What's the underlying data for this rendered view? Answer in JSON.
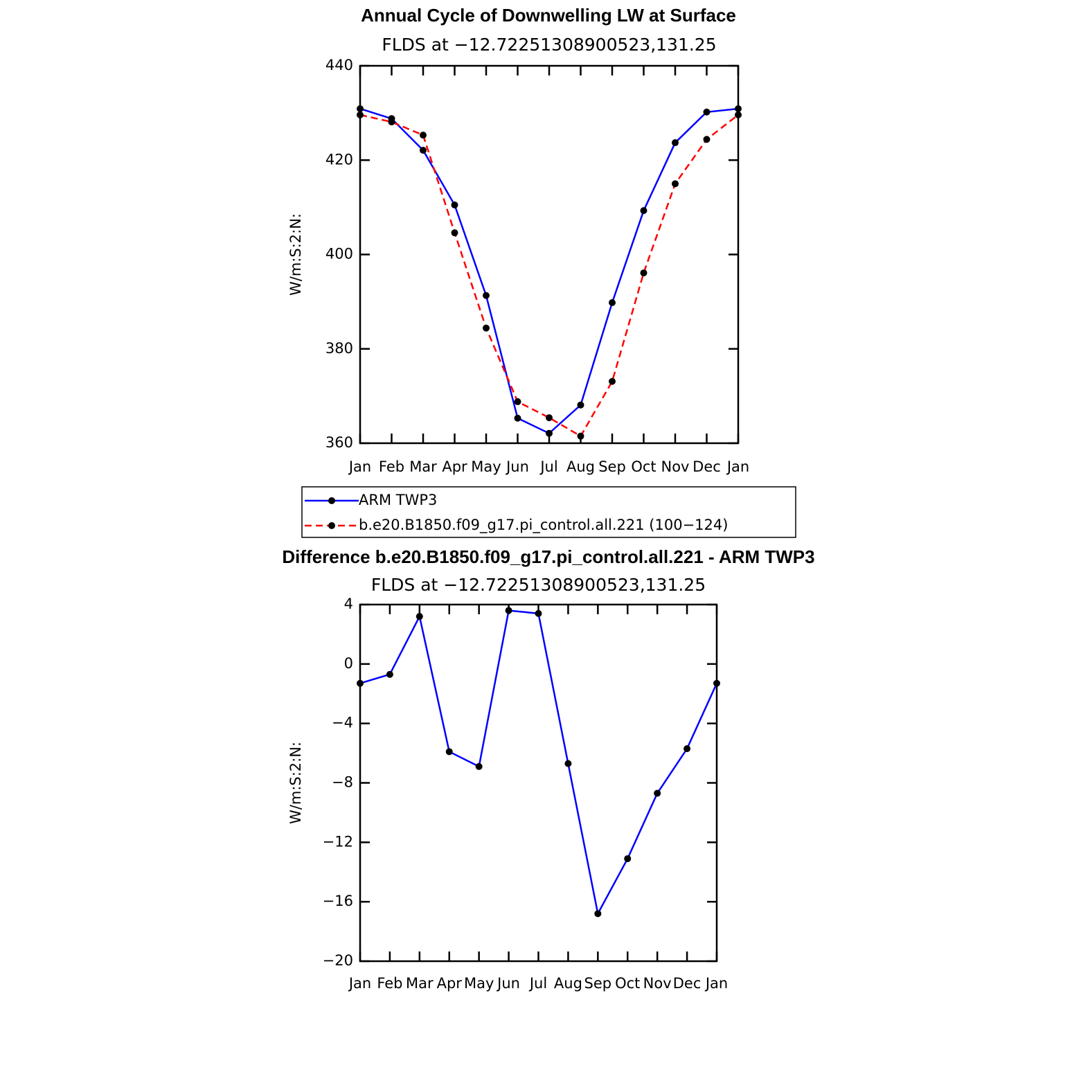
{
  "chart_data": [
    {
      "type": "line",
      "title": "Annual Cycle of Downwelling LW at Surface",
      "subtitle": "FLDS at −12.72251308900523,131.25",
      "y_label": "W/m:S:2:N:",
      "categories": [
        "Jan",
        "Feb",
        "Mar",
        "Apr",
        "May",
        "Jun",
        "Jul",
        "Aug",
        "Sep",
        "Oct",
        "Nov",
        "Dec",
        "Jan"
      ],
      "series": [
        {
          "name": "ARM TWP3",
          "color": "#0000ff",
          "line_style": "solid",
          "values": [
            430.9,
            428.8,
            422.1,
            410.5,
            391.3,
            365.3,
            362.1,
            368.1,
            389.8,
            409.3,
            423.7,
            430.2,
            430.9
          ]
        },
        {
          "name": "b.e20.B1850.f09_g17.pi_control.all.221 (100−124)",
          "color": "#ff0000",
          "line_style": "dashed",
          "values": [
            429.6,
            428.1,
            425.3,
            404.6,
            384.4,
            368.8,
            365.4,
            361.5,
            373.1,
            396.1,
            415.0,
            424.4,
            429.6
          ]
        }
      ],
      "ylim": [
        360,
        440
      ],
      "yticks": [
        360,
        380,
        400,
        420,
        440
      ],
      "legend": "bottom"
    },
    {
      "type": "line",
      "title": "Difference b.e20.B1850.f09_g17.pi_control.all.221 - ARM TWP3",
      "subtitle": "FLDS at −12.72251308900523,131.25",
      "y_label": "W/m:S:2:N:",
      "categories": [
        "Jan",
        "Feb",
        "Mar",
        "Apr",
        "May",
        "Jun",
        "Jul",
        "Aug",
        "Sep",
        "Oct",
        "Nov",
        "Dec",
        "Jan"
      ],
      "series": [
        {
          "color": "#0000ff",
          "line_style": "solid",
          "values": [
            -1.3,
            -0.7,
            3.2,
            -5.9,
            -6.9,
            3.6,
            3.4,
            -6.7,
            -16.8,
            -13.1,
            -8.7,
            -5.7,
            -1.3
          ]
        }
      ],
      "ylim": [
        -20,
        4
      ],
      "yticks": [
        {
          "value": -20,
          "label": "−20"
        },
        {
          "value": -16,
          "label": "−16"
        },
        {
          "value": -12,
          "label": "−12"
        },
        {
          "value": -8,
          "label": "−8"
        },
        {
          "value": -4,
          "label": "−4"
        },
        0,
        4
      ]
    }
  ]
}
